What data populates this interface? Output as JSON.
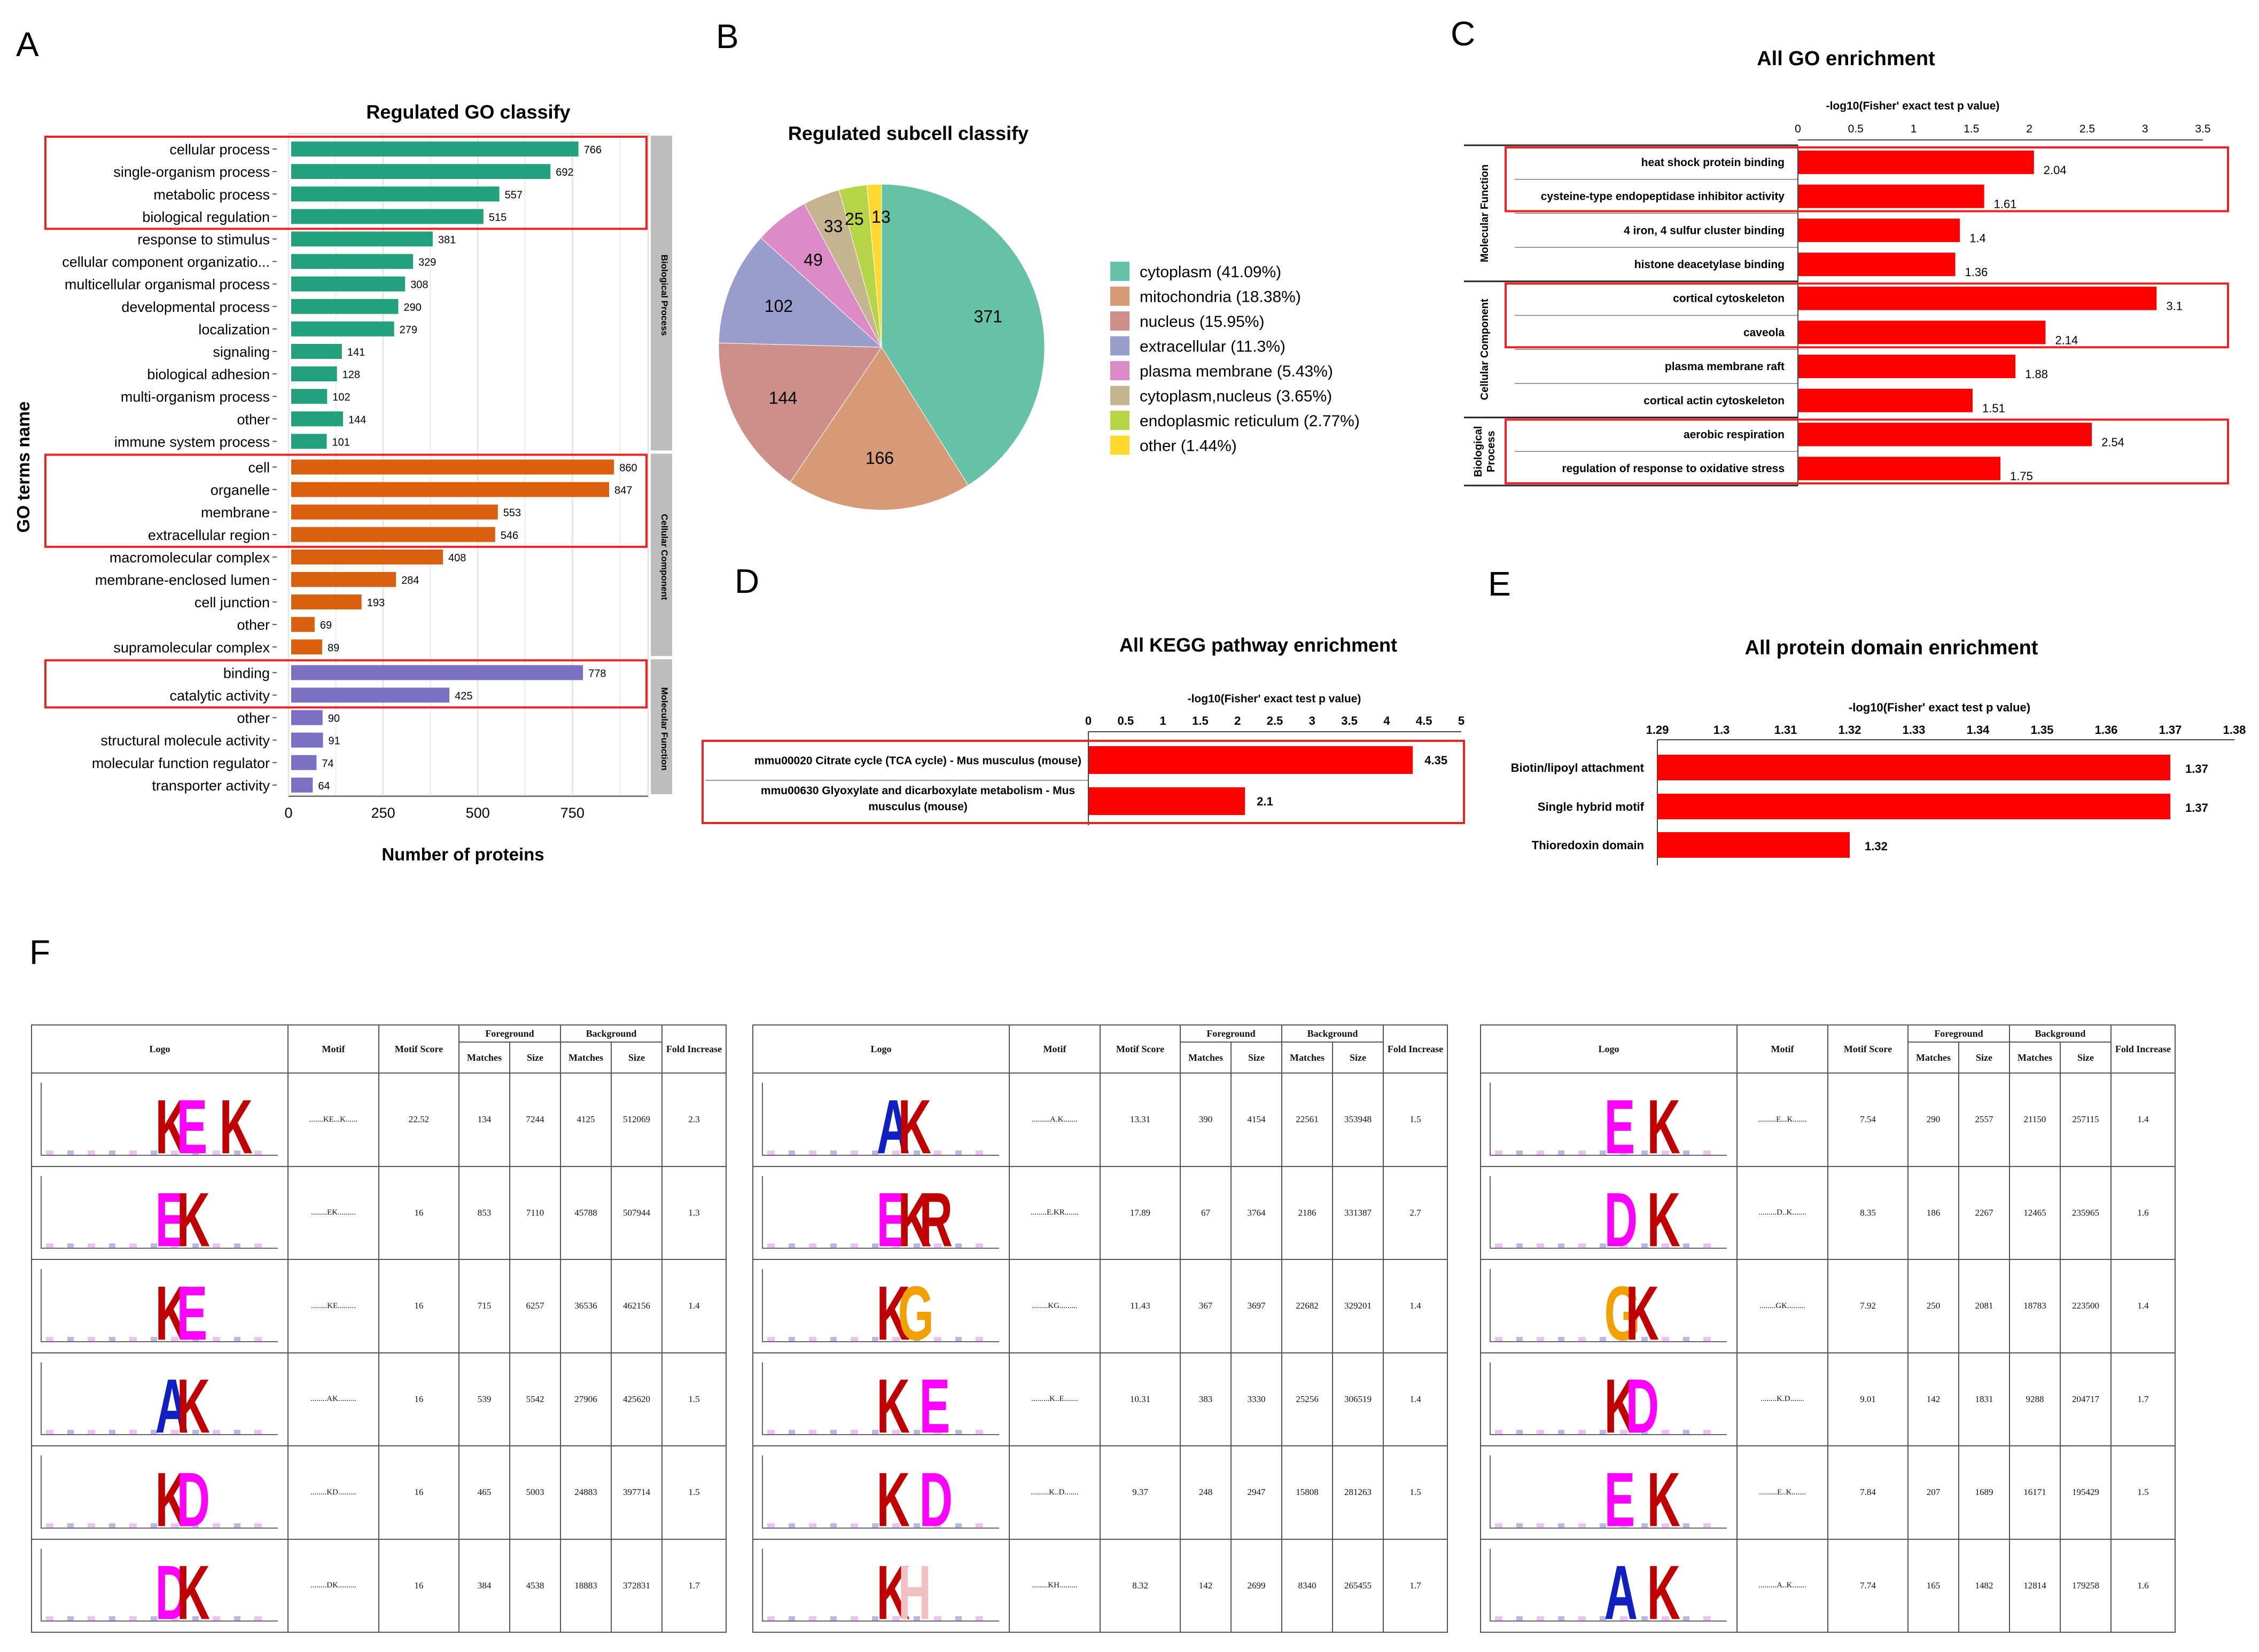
{
  "panels": {
    "A": "A",
    "B": "B",
    "C": "C",
    "D": "D",
    "E": "E",
    "F": "F"
  },
  "colors": {
    "bp": "#23a17e",
    "cc": "#d9600e",
    "mf": "#7b6fc4",
    "red_bar": "#ff0000",
    "highlight": "#ee2222",
    "strip": "#bdbdbd"
  },
  "chart_data": [
    {
      "id": "A",
      "type": "bar",
      "orientation": "horizontal",
      "title": "Regulated GO classify",
      "xlabel": "Number of proteins",
      "ylabel": "GO terms name",
      "xlim": [
        0,
        950
      ],
      "xticks": [
        0,
        250,
        500,
        750
      ],
      "grid": true,
      "groups": [
        {
          "name": "Biological Process",
          "color": "#23a17e",
          "categories": [
            "cellular process",
            "single-organism process",
            "metabolic process",
            "biological regulation",
            "response to stimulus",
            "cellular component organizatio...",
            "multicellular organismal process",
            "developmental process",
            "localization",
            "signaling",
            "biological adhesion",
            "multi-organism process",
            "other",
            "immune system process"
          ],
          "values": [
            766,
            692,
            557,
            515,
            381,
            329,
            308,
            290,
            279,
            141,
            128,
            102,
            144,
            101
          ]
        },
        {
          "name": "Cellular Component",
          "color": "#d9600e",
          "categories": [
            "cell",
            "organelle",
            "membrane",
            "extracellular region",
            "macromolecular complex",
            "membrane-enclosed lumen",
            "cell junction",
            "other",
            "supramolecular complex"
          ],
          "values": [
            860,
            847,
            553,
            546,
            408,
            284,
            193,
            69,
            89
          ]
        },
        {
          "name": "Molecular Function",
          "color": "#7b6fc4",
          "categories": [
            "binding",
            "catalytic activity",
            "other",
            "structural molecule activity",
            "molecular function regulator",
            "transporter activity"
          ],
          "values": [
            778,
            425,
            90,
            91,
            74,
            64
          ]
        }
      ],
      "highlight_boxes": [
        [
          0,
          3
        ],
        [
          14,
          17
        ],
        [
          23,
          24
        ]
      ]
    },
    {
      "id": "B",
      "type": "pie",
      "title": "Regulated subcell classify",
      "labels": [
        "cytoplasm (41.09%)",
        "mitochondria (18.38%)",
        "nucleus (15.95%)",
        "extracellular (11.3%)",
        "plasma membrane (5.43%)",
        "cytoplasm,nucleus (3.65%)",
        "endoplasmic reticulum (2.77%)",
        "other (1.44%)"
      ],
      "values": [
        371,
        166,
        144,
        102,
        49,
        33,
        25,
        13
      ],
      "colors": [
        "#66c2a5",
        "#d69b76",
        "#cc8f8a",
        "#9a9ccb",
        "#dc8bc6",
        "#c4b48f",
        "#b6d446",
        "#ffd92f"
      ],
      "legend": "right"
    },
    {
      "id": "C",
      "type": "bar",
      "orientation": "horizontal",
      "title": "All GO enrichment",
      "xlabel": "-log10(Fisher' exact test p value)",
      "xlim": [
        0,
        3.5
      ],
      "xticks": [
        "0",
        "0.5",
        "1",
        "1.5",
        "2",
        "2.5",
        "3",
        "3.5"
      ],
      "groups": [
        {
          "name": "Molecular Function",
          "categories": [
            "heat shock protein binding",
            "cysteine-type endopeptidase inhibitor activity",
            "4 iron, 4 sulfur cluster binding",
            "histone deacetylase binding"
          ],
          "values": [
            2.04,
            1.61,
            1.4,
            1.36
          ]
        },
        {
          "name": "Cellular Component",
          "categories": [
            "cortical cytoskeleton",
            "caveola",
            "plasma membrane raft",
            "cortical actin cytoskeleton"
          ],
          "values": [
            3.1,
            2.14,
            1.88,
            1.51
          ]
        },
        {
          "name": "Biological Process",
          "categories": [
            "aerobic respiration",
            "regulation of response to oxidative stress"
          ],
          "values": [
            2.54,
            1.75
          ]
        }
      ],
      "group_labels": [
        "Molecular Function",
        "Cellular Component",
        "Biological\nProcess"
      ],
      "highlight_boxes": [
        [
          0,
          1
        ],
        [
          4,
          5
        ],
        [
          8,
          9
        ]
      ]
    },
    {
      "id": "D",
      "type": "bar",
      "orientation": "horizontal",
      "title": "All KEGG pathway enrichment",
      "xlabel": "-log10(Fisher' exact test p value)",
      "xlim": [
        0,
        5
      ],
      "xticks": [
        "0",
        "0.5",
        "1",
        "1.5",
        "2",
        "2.5",
        "3",
        "3.5",
        "4",
        "4.5",
        "5"
      ],
      "categories": [
        [
          "mmu00020 Citrate cycle (TCA cycle) - Mus musculus (mouse)"
        ],
        [
          "mmu00630 Glyoxylate and dicarboxylate metabolism - Mus",
          "musculus (mouse)"
        ]
      ],
      "values": [
        4.35,
        2.1
      ]
    },
    {
      "id": "E",
      "type": "bar",
      "orientation": "horizontal",
      "title": "All protein domain enrichment",
      "xlabel": "-log10(Fisher' exact test p value)",
      "xlim": [
        1.29,
        1.38
      ],
      "xticks": [
        "1.29",
        "1.3",
        "1.31",
        "1.32",
        "1.33",
        "1.34",
        "1.35",
        "1.36",
        "1.37",
        "1.38"
      ],
      "categories": [
        "Biotin/lipoyl attachment",
        "Single hybrid motif",
        "Thioredoxin domain"
      ],
      "values": [
        1.37,
        1.37,
        1.32
      ],
      "value_labels": [
        "1.37",
        "1.37",
        "1.32"
      ]
    }
  ],
  "motif_tables": {
    "headers": {
      "logo": "Logo",
      "motif": "Motif",
      "score": "Motif Score",
      "fg": "Foreground",
      "bg": "Background",
      "matches": "Matches",
      "size": "Size",
      "fold": "Fold Increase"
    },
    "tables": [
      {
        "rows": [
          {
            "logo": [
              {
                "c": "K",
                "col": "#c00000"
              },
              {
                "c": "E",
                "col": "#ff00ff"
              },
              {
                "c": "",
                "col": ""
              },
              {
                "c": "K",
                "col": "#c00000"
              }
            ],
            "motif": ".......KE...K......",
            "score": "22.52",
            "fm": "134",
            "fs": "7244",
            "bm": "4125",
            "bs": "512069",
            "fold": "2.3"
          },
          {
            "logo": [
              {
                "c": "E",
                "col": "#ff00ff"
              },
              {
                "c": "K",
                "col": "#c00000"
              }
            ],
            "motif": "........EK.........",
            "score": "16",
            "fm": "853",
            "fs": "7110",
            "bm": "45788",
            "bs": "507944",
            "fold": "1.3"
          },
          {
            "logo": [
              {
                "c": "K",
                "col": "#c00000"
              },
              {
                "c": "E",
                "col": "#ff00ff"
              }
            ],
            "motif": "........KE.........",
            "score": "16",
            "fm": "715",
            "fs": "6257",
            "bm": "36536",
            "bs": "462156",
            "fold": "1.4"
          },
          {
            "logo": [
              {
                "c": "A",
                "col": "#1020c0"
              },
              {
                "c": "K",
                "col": "#c00000"
              }
            ],
            "motif": "........AK.........",
            "score": "16",
            "fm": "539",
            "fs": "5542",
            "bm": "27906",
            "bs": "425620",
            "fold": "1.5"
          },
          {
            "logo": [
              {
                "c": "K",
                "col": "#c00000"
              },
              {
                "c": "D",
                "col": "#ff00ff"
              }
            ],
            "motif": "........KD.........",
            "score": "16",
            "fm": "465",
            "fs": "5003",
            "bm": "24883",
            "bs": "397714",
            "fold": "1.5"
          },
          {
            "logo": [
              {
                "c": "D",
                "col": "#ff00ff"
              },
              {
                "c": "K",
                "col": "#c00000"
              }
            ],
            "motif": "........DK.........",
            "score": "16",
            "fm": "384",
            "fs": "4538",
            "bm": "18883",
            "bs": "372831",
            "fold": "1.7"
          }
        ]
      },
      {
        "rows": [
          {
            "logo": [
              {
                "c": "A",
                "col": "#1020c0"
              },
              {
                "c": "K",
                "col": "#c00000"
              }
            ],
            "motif": ".........A.K.......",
            "score": "13.31",
            "fm": "390",
            "fs": "4154",
            "bm": "22561",
            "bs": "353948",
            "fold": "1.5"
          },
          {
            "logo": [
              {
                "c": "E",
                "col": "#ff00ff"
              },
              {
                "c": "K",
                "col": "#c00000"
              },
              {
                "c": "R",
                "col": "#c00000"
              }
            ],
            "motif": "........E.KR.......",
            "score": "17.89",
            "fm": "67",
            "fs": "3764",
            "bm": "2186",
            "bs": "331387",
            "fold": "2.7"
          },
          {
            "logo": [
              {
                "c": "K",
                "col": "#c00000"
              },
              {
                "c": "G",
                "col": "#f0a000"
              }
            ],
            "motif": "........KG.........",
            "score": "11.43",
            "fm": "367",
            "fs": "3697",
            "bm": "22682",
            "bs": "329201",
            "fold": "1.4"
          },
          {
            "logo": [
              {
                "c": "K",
                "col": "#c00000"
              },
              {
                "c": "",
                "col": ""
              },
              {
                "c": "E",
                "col": "#ff00ff"
              }
            ],
            "motif": ".........K..E.......",
            "score": "10.31",
            "fm": "383",
            "fs": "3330",
            "bm": "25256",
            "bs": "306519",
            "fold": "1.4"
          },
          {
            "logo": [
              {
                "c": "K",
                "col": "#c00000"
              },
              {
                "c": "",
                "col": ""
              },
              {
                "c": "D",
                "col": "#ff00ff"
              }
            ],
            "motif": ".........K..D.......",
            "score": "9.37",
            "fm": "248",
            "fs": "2947",
            "bm": "15808",
            "bs": "281263",
            "fold": "1.5"
          },
          {
            "logo": [
              {
                "c": "K",
                "col": "#c00000"
              },
              {
                "c": "H",
                "col": "#f2c0c0"
              }
            ],
            "motif": "........KH.........",
            "score": "8.32",
            "fm": "142",
            "fs": "2699",
            "bm": "8340",
            "bs": "265455",
            "fold": "1.7"
          }
        ]
      },
      {
        "rows": [
          {
            "logo": [
              {
                "c": "E",
                "col": "#ff00ff"
              },
              {
                "c": "",
                "col": ""
              },
              {
                "c": "K",
                "col": "#c00000"
              }
            ],
            "motif": ".........E...K.......",
            "score": "7.54",
            "fm": "290",
            "fs": "2557",
            "bm": "21150",
            "bs": "257115",
            "fold": "1.4"
          },
          {
            "logo": [
              {
                "c": "D",
                "col": "#ff00ff"
              },
              {
                "c": "",
                "col": ""
              },
              {
                "c": "K",
                "col": "#c00000"
              }
            ],
            "motif": ".........D..K.......",
            "score": "8.35",
            "fm": "186",
            "fs": "2267",
            "bm": "12465",
            "bs": "235965",
            "fold": "1.6"
          },
          {
            "logo": [
              {
                "c": "G",
                "col": "#f0a000"
              },
              {
                "c": "K",
                "col": "#c00000"
              }
            ],
            "motif": "........GK.........",
            "score": "7.92",
            "fm": "250",
            "fs": "2081",
            "bm": "18783",
            "bs": "223500",
            "fold": "1.4"
          },
          {
            "logo": [
              {
                "c": "K",
                "col": "#c00000"
              },
              {
                "c": "D",
                "col": "#ff00ff"
              }
            ],
            "motif": "........K.D.......",
            "score": "9.01",
            "fm": "142",
            "fs": "1831",
            "bm": "9288",
            "bs": "204717",
            "fold": "1.7"
          },
          {
            "logo": [
              {
                "c": "E",
                "col": "#ff00ff"
              },
              {
                "c": "",
                "col": ""
              },
              {
                "c": "K",
                "col": "#c00000"
              }
            ],
            "motif": ".........E..K.......",
            "score": "7.84",
            "fm": "207",
            "fs": "1689",
            "bm": "16171",
            "bs": "195429",
            "fold": "1.5"
          },
          {
            "logo": [
              {
                "c": "A",
                "col": "#1020c0"
              },
              {
                "c": "",
                "col": ""
              },
              {
                "c": "K",
                "col": "#c00000"
              }
            ],
            "motif": ".........A..K.......",
            "score": "7.74",
            "fm": "165",
            "fs": "1482",
            "bm": "12814",
            "bs": "179258",
            "fold": "1.6"
          }
        ]
      }
    ]
  }
}
